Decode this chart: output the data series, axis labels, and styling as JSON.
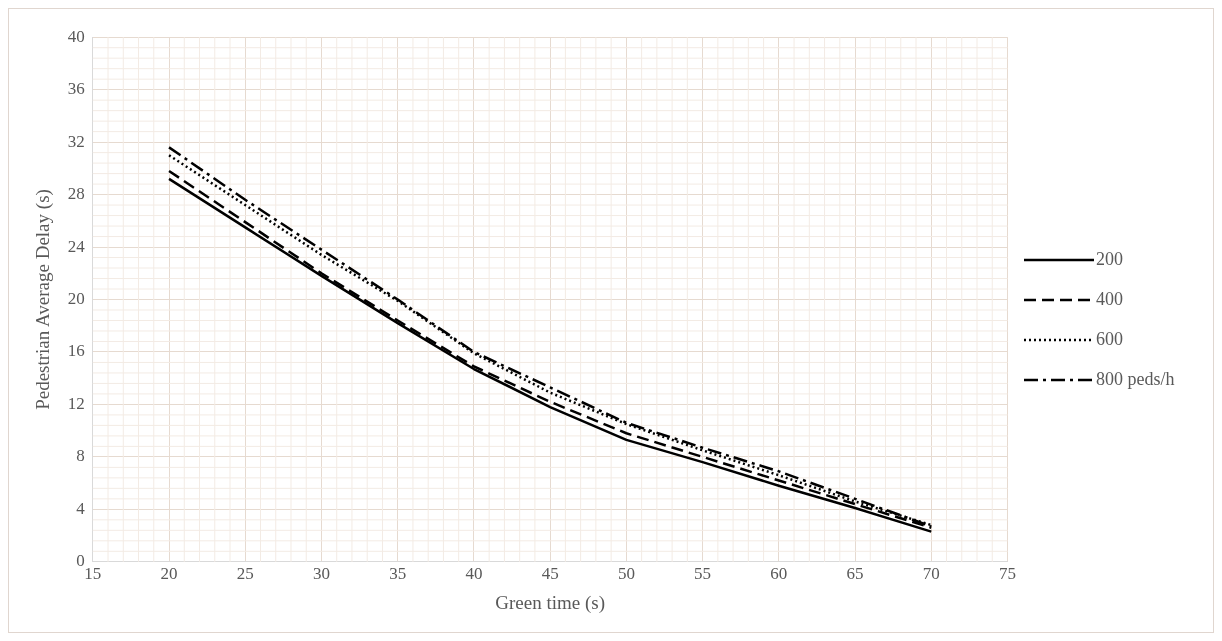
{
  "chart_data": {
    "type": "line",
    "xlabel": "Green time (s)",
    "ylabel": "Pedestrian Average Delay (s)",
    "x": [
      20,
      25,
      30,
      35,
      40,
      45,
      50,
      55,
      60,
      65,
      70
    ],
    "series": [
      {
        "name": "200",
        "color": "#000000",
        "line_style": "solid",
        "values": [
          29.2,
          25.5,
          21.8,
          18.2,
          14.7,
          11.8,
          9.3,
          7.6,
          5.8,
          4.1,
          2.3
        ]
      },
      {
        "name": "400",
        "color": "#000000",
        "line_style": "dashed",
        "values": [
          29.8,
          25.9,
          22.0,
          18.4,
          14.9,
          12.2,
          9.8,
          8.0,
          6.2,
          4.4,
          2.6
        ]
      },
      {
        "name": "600",
        "color": "#000000",
        "line_style": "dotted",
        "values": [
          31.0,
          27.2,
          23.4,
          19.9,
          15.9,
          12.9,
          10.5,
          8.5,
          6.6,
          4.6,
          2.8
        ]
      },
      {
        "name": "800 peds/h",
        "color": "#000000",
        "line_style": "dashdot",
        "values": [
          31.6,
          27.6,
          23.8,
          20.0,
          16.0,
          13.3,
          10.6,
          8.7,
          6.9,
          4.8,
          2.7
        ]
      }
    ],
    "xlim": [
      15,
      75
    ],
    "xticks": [
      15,
      20,
      25,
      30,
      35,
      40,
      45,
      50,
      55,
      60,
      65,
      70,
      75
    ],
    "ylim": [
      0,
      40
    ],
    "yticks": [
      0,
      4,
      8,
      12,
      16,
      20,
      24,
      28,
      32,
      36,
      40
    ],
    "grid": true,
    "legend": "right",
    "marker": "none"
  }
}
